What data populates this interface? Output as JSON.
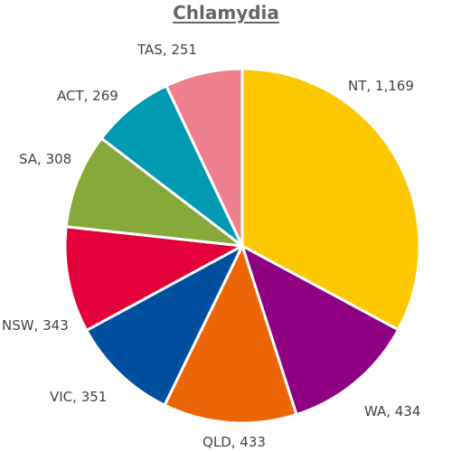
{
  "chart_data": {
    "type": "pie",
    "title": "Chlamydia",
    "slices": [
      {
        "category": "NT",
        "value": 1169,
        "label": "NT, 1,169",
        "color": "#FDC800"
      },
      {
        "category": "WA",
        "value": 434,
        "label": "WA, 434",
        "color": "#8E0081"
      },
      {
        "category": "QLD",
        "value": 433,
        "label": "QLD, 433",
        "color": "#EC6506"
      },
      {
        "category": "VIC",
        "value": 351,
        "label": "VIC, 351",
        "color": "#00509F"
      },
      {
        "category": "NSW",
        "value": 343,
        "label": "NSW, 343",
        "color": "#E4003A"
      },
      {
        "category": "SA",
        "value": 308,
        "label": "SA, 308",
        "color": "#86A93A"
      },
      {
        "category": "ACT",
        "value": 269,
        "label": "ACT, 269",
        "color": "#009AB2"
      },
      {
        "category": "TAS",
        "value": 251,
        "label": "TAS, 251",
        "color": "#EE7F8D"
      }
    ],
    "legend": "none",
    "start_angle": "12 o'clock",
    "direction": "clockwise"
  }
}
